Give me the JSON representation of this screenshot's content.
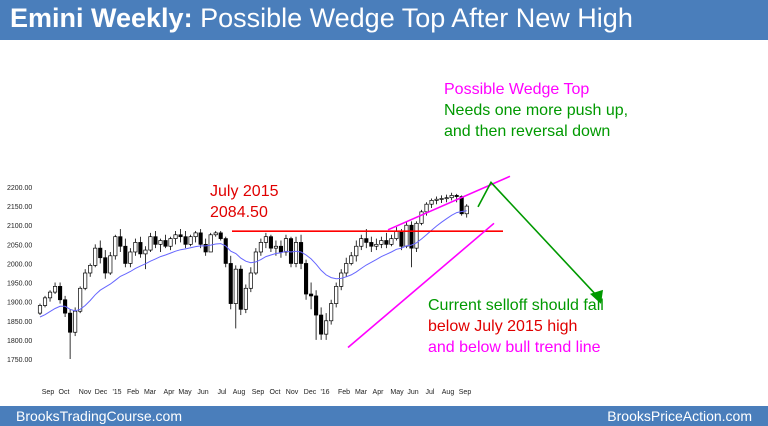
{
  "header": {
    "title_bold": "Emini Weekly:",
    "title_rest": "Possible Wedge Top After New High"
  },
  "footer": {
    "left": "BrooksTradingCourse.com",
    "right": "BrooksPriceAction.com"
  },
  "annotations": {
    "july_label": "July 2015",
    "july_value": "2084.50",
    "wedge_title": "Possible Wedge Top",
    "wedge_line1": "Needs one more push up,",
    "wedge_line2": "and then reversal down",
    "selloff_line1": "Current selloff should fall",
    "selloff_line2": "below July 2015 high",
    "selloff_line3": "and below bull trend line"
  },
  "colors": {
    "header": "#4a7ebb",
    "bull": "#ffffff",
    "bear": "#000000",
    "ma": "#6666ff",
    "red_line": "#ff0000",
    "magenta": "#ff00ff",
    "green": "#009900"
  },
  "chart_data": {
    "type": "candlestick",
    "title": "Emini Weekly: Possible Wedge Top After New High",
    "ylim": [
      1725,
      2225
    ],
    "y_ticks": [
      "1750.00",
      "1800.00",
      "1850.00",
      "1900.00",
      "1950.00",
      "2000.00",
      "2050.00",
      "2100.00",
      "2150.00",
      "2200.00"
    ],
    "x_ticks": [
      "Sep",
      "Oct",
      "Nov",
      "Dec",
      "'15",
      "Feb",
      "Mar",
      "Apr",
      "May",
      "Jun",
      "Jul",
      "Aug",
      "Sep",
      "Oct",
      "Nov",
      "Dec",
      "'16",
      "Feb",
      "Mar",
      "Apr",
      "May",
      "Jun",
      "Jul",
      "Aug",
      "Sep"
    ],
    "levels": {
      "july_2015_high": 2084.5
    },
    "series": [
      {
        "name": "ohlc",
        "ohlc": [
          [
            1870,
            1895,
            1865,
            1890
          ],
          [
            1890,
            1915,
            1885,
            1910
          ],
          [
            1910,
            1930,
            1900,
            1925
          ],
          [
            1925,
            1950,
            1920,
            1940
          ],
          [
            1940,
            1950,
            1895,
            1905
          ],
          [
            1905,
            1915,
            1860,
            1870
          ],
          [
            1870,
            1880,
            1750,
            1820
          ],
          [
            1820,
            1885,
            1810,
            1875
          ],
          [
            1875,
            1940,
            1870,
            1935
          ],
          [
            1935,
            1985,
            1930,
            1975
          ],
          [
            1975,
            2000,
            1965,
            1995
          ],
          [
            1995,
            2050,
            1990,
            2040
          ],
          [
            2040,
            2060,
            2000,
            2015
          ],
          [
            2015,
            2035,
            1960,
            1975
          ],
          [
            1975,
            2030,
            1970,
            2020
          ],
          [
            2020,
            2075,
            2010,
            2070
          ],
          [
            2070,
            2090,
            2030,
            2045
          ],
          [
            2045,
            2065,
            1990,
            2000
          ],
          [
            2000,
            2040,
            1990,
            2030
          ],
          [
            2030,
            2065,
            2020,
            2055
          ],
          [
            2055,
            2070,
            2015,
            2025
          ],
          [
            2025,
            2045,
            1985,
            2035
          ],
          [
            2035,
            2080,
            2030,
            2070
          ],
          [
            2070,
            2085,
            2040,
            2050
          ],
          [
            2050,
            2065,
            2030,
            2060
          ],
          [
            2060,
            2075,
            2040,
            2045
          ],
          [
            2045,
            2070,
            2035,
            2065
          ],
          [
            2065,
            2085,
            2050,
            2075
          ],
          [
            2075,
            2090,
            2055,
            2070
          ],
          [
            2070,
            2085,
            2040,
            2050
          ],
          [
            2050,
            2075,
            2045,
            2070
          ],
          [
            2070,
            2085,
            2055,
            2080
          ],
          [
            2080,
            2090,
            2040,
            2050
          ],
          [
            2050,
            2065,
            2020,
            2030
          ],
          [
            2030,
            2080,
            2030,
            2075
          ],
          [
            2075,
            2085,
            2070,
            2080
          ],
          [
            2080,
            2085,
            2060,
            2065
          ],
          [
            2065,
            2070,
            1990,
            2000
          ],
          [
            2000,
            2020,
            1880,
            1895
          ],
          [
            1895,
            1995,
            1830,
            1985
          ],
          [
            1985,
            1995,
            1865,
            1880
          ],
          [
            1880,
            1945,
            1870,
            1935
          ],
          [
            1935,
            1990,
            1925,
            1975
          ],
          [
            1975,
            2040,
            1970,
            2030
          ],
          [
            2030,
            2065,
            2020,
            2055
          ],
          [
            2055,
            2080,
            2040,
            2070
          ],
          [
            2070,
            2075,
            2030,
            2040
          ],
          [
            2040,
            2060,
            2020,
            2045
          ],
          [
            2045,
            2060,
            2015,
            2030
          ],
          [
            2030,
            2075,
            2020,
            2065
          ],
          [
            2065,
            2070,
            1990,
            2000
          ],
          [
            2000,
            2070,
            1990,
            2055
          ],
          [
            2055,
            2075,
            1985,
            2000
          ],
          [
            2000,
            2010,
            1905,
            1920
          ],
          [
            1920,
            1950,
            1880,
            1915
          ],
          [
            1915,
            1930,
            1800,
            1865
          ],
          [
            1865,
            1885,
            1800,
            1815
          ],
          [
            1815,
            1870,
            1800,
            1850
          ],
          [
            1850,
            1905,
            1840,
            1895
          ],
          [
            1895,
            1950,
            1885,
            1940
          ],
          [
            1940,
            1985,
            1930,
            1975
          ],
          [
            1975,
            2015,
            1965,
            2000
          ],
          [
            2000,
            2030,
            1995,
            2020
          ],
          [
            2020,
            2060,
            2005,
            2045
          ],
          [
            2045,
            2075,
            2035,
            2065
          ],
          [
            2065,
            2090,
            2040,
            2055
          ],
          [
            2055,
            2070,
            2030,
            2045
          ],
          [
            2045,
            2065,
            2035,
            2050
          ],
          [
            2050,
            2070,
            2040,
            2060
          ],
          [
            2060,
            2080,
            2040,
            2050
          ],
          [
            2050,
            2075,
            2045,
            2065
          ],
          [
            2065,
            2095,
            2060,
            2085
          ],
          [
            2085,
            2090,
            2035,
            2045
          ],
          [
            2045,
            2110,
            2040,
            2100
          ],
          [
            2100,
            2110,
            1990,
            2040
          ],
          [
            2040,
            2110,
            2030,
            2105
          ],
          [
            2105,
            2140,
            2100,
            2135
          ],
          [
            2135,
            2160,
            2125,
            2155
          ],
          [
            2155,
            2170,
            2145,
            2165
          ],
          [
            2165,
            2175,
            2155,
            2168
          ],
          [
            2168,
            2178,
            2158,
            2170
          ],
          [
            2170,
            2180,
            2160,
            2172
          ],
          [
            2172,
            2185,
            2165,
            2178
          ],
          [
            2178,
            2182,
            2160,
            2175
          ],
          [
            2175,
            2178,
            2125,
            2130
          ],
          [
            2130,
            2155,
            2120,
            2150
          ]
        ]
      },
      {
        "name": "moving_average",
        "values": [
          1860,
          1866,
          1874,
          1882,
          1888,
          1888,
          1880,
          1876,
          1880,
          1890,
          1903,
          1918,
          1930,
          1938,
          1946,
          1956,
          1966,
          1972,
          1979,
          1987,
          1993,
          1999,
          2006,
          2012,
          2018,
          2022,
          2027,
          2032,
          2036,
          2038,
          2041,
          2044,
          2046,
          2046,
          2048,
          2051,
          2052,
          2046,
          2032,
          2026,
          2014,
          2006,
          2002,
          2004,
          2010,
          2018,
          2022,
          2026,
          2028,
          2032,
          2030,
          2032,
          2030,
          2022,
          2012,
          1998,
          1982,
          1970,
          1963,
          1960,
          1961,
          1965,
          1970,
          1978,
          1987,
          1996,
          2003,
          2010,
          2018,
          2024,
          2030,
          2037,
          2040,
          2046,
          2048,
          2054,
          2064,
          2075,
          2087,
          2098,
          2108,
          2117,
          2126,
          2133,
          2136,
          2138
        ]
      }
    ]
  }
}
